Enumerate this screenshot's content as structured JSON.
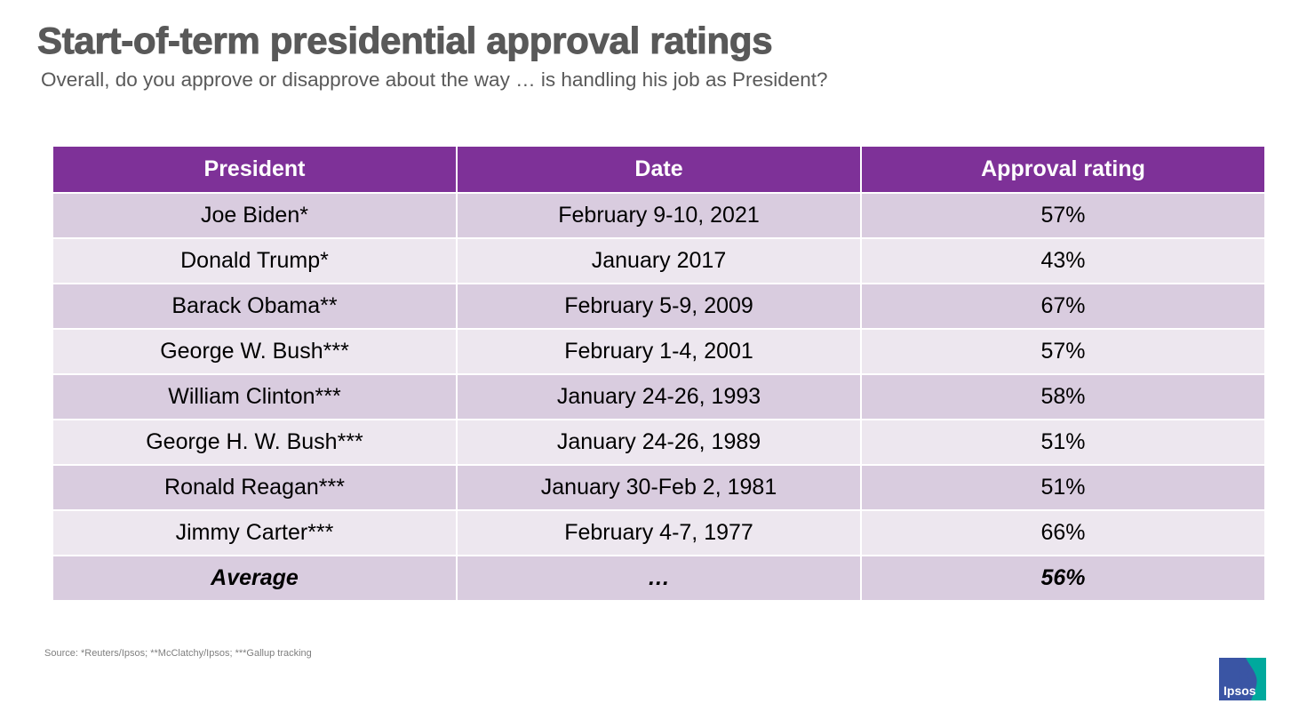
{
  "title": "Start-of-term presidential approval ratings",
  "subtitle": "Overall, do you approve or disapprove about the way … is handling his job as President?",
  "table": {
    "headers": [
      "President",
      "Date",
      "Approval rating"
    ],
    "rows": [
      {
        "president": "Joe Biden*",
        "date": "February 9-10, 2021",
        "approval": "57%"
      },
      {
        "president": "Donald Trump*",
        "date": "January 2017",
        "approval": "43%"
      },
      {
        "president": "Barack Obama**",
        "date": "February 5-9, 2009",
        "approval": "67%"
      },
      {
        "president": "George W. Bush***",
        "date": "February 1-4, 2001",
        "approval": "57%"
      },
      {
        "president": "William Clinton***",
        "date": "January 24-26, 1993",
        "approval": "58%"
      },
      {
        "president": "George H. W. Bush***",
        "date": "January 24-26, 1989",
        "approval": "51%"
      },
      {
        "president": "Ronald Reagan***",
        "date": "January 30-Feb 2, 1981",
        "approval": "51%"
      },
      {
        "president": "Jimmy Carter***",
        "date": "February 4-7, 1977",
        "approval": "66%"
      }
    ],
    "average": {
      "president": "Average",
      "date": "…",
      "approval": "56%"
    }
  },
  "source": "Source: *Reuters/Ipsos; **McClatchy/Ipsos; ***Gallup tracking",
  "logo": {
    "text": "Ipsos",
    "colors": {
      "blue": "#3a55a4",
      "teal": "#00a99d"
    }
  },
  "colors": {
    "header": "#7e3198",
    "row_dark": "#d9ccdf",
    "row_light": "#ede7ef",
    "title_text": "#595959"
  }
}
